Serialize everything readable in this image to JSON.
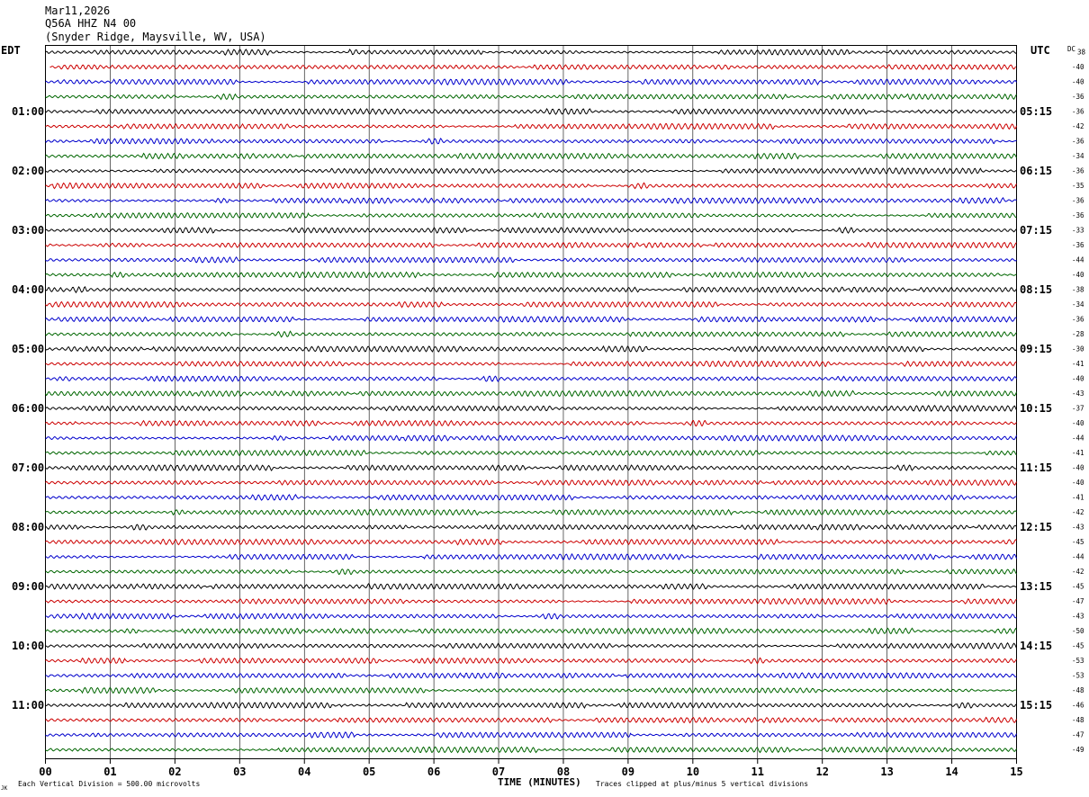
{
  "header": {
    "date": "Mar11,2026",
    "station": "Q56A HHZ N4 00",
    "location": "(Snyder Ridge, Maysville, WV, USA)"
  },
  "left_tz": "EDT",
  "right_tz": "UTC",
  "dc_label": "DC",
  "footer": {
    "scale": "Each Vertical Division =  500.00 microvolts",
    "clip": "Traces clipped at plus/minus 5 vertical divisions",
    "corner": "JK"
  },
  "colors": {
    "trace_cycle": [
      "#000000",
      "#cc0000",
      "#0000cc",
      "#006600"
    ],
    "grid": "#000000"
  },
  "chart_data": {
    "type": "line",
    "xlabel": "TIME (MINUTES)",
    "x_ticks": [
      "00",
      "01",
      "02",
      "03",
      "04",
      "05",
      "06",
      "07",
      "08",
      "09",
      "10",
      "11",
      "12",
      "13",
      "14",
      "15"
    ],
    "xlim": [
      0,
      15
    ],
    "left_hour_labels": [
      {
        "text": "01:00",
        "row": 4
      },
      {
        "text": "02:00",
        "row": 8
      },
      {
        "text": "03:00",
        "row": 12
      },
      {
        "text": "04:00",
        "row": 16
      },
      {
        "text": "05:00",
        "row": 20
      },
      {
        "text": "06:00",
        "row": 24
      },
      {
        "text": "07:00",
        "row": 28
      },
      {
        "text": "08:00",
        "row": 32
      },
      {
        "text": "09:00",
        "row": 36
      },
      {
        "text": "10:00",
        "row": 40
      },
      {
        "text": "11:00",
        "row": 44
      }
    ],
    "right_hour_labels": [
      {
        "text": "05:15",
        "row": 4
      },
      {
        "text": "06:15",
        "row": 8
      },
      {
        "text": "07:15",
        "row": 12
      },
      {
        "text": "08:15",
        "row": 16
      },
      {
        "text": "09:15",
        "row": 20
      },
      {
        "text": "10:15",
        "row": 24
      },
      {
        "text": "11:15",
        "row": 28
      },
      {
        "text": "12:15",
        "row": 32
      },
      {
        "text": "13:15",
        "row": 36
      },
      {
        "text": "14:15",
        "row": 40
      },
      {
        "text": "15:15",
        "row": 44
      }
    ],
    "dc_offsets": [
      "38",
      "-40",
      "-40",
      "-36",
      "-36",
      "-42",
      "-36",
      "-34",
      "-36",
      "-35",
      "-36",
      "-36",
      "-33",
      "-36",
      "-44",
      "-40",
      "-38",
      "-34",
      "-36",
      "-28",
      "-30",
      "-41",
      "-40",
      "-43",
      "-37",
      "-40",
      "-44",
      "-41",
      "-40",
      "-40",
      "-41",
      "-42",
      "-43",
      "-45",
      "-44",
      "-42",
      "-45",
      "-47",
      "-43",
      "-50",
      "-45",
      "-53",
      "-53",
      "-48",
      "-46",
      "-48",
      "-47",
      "-49"
    ]
  }
}
